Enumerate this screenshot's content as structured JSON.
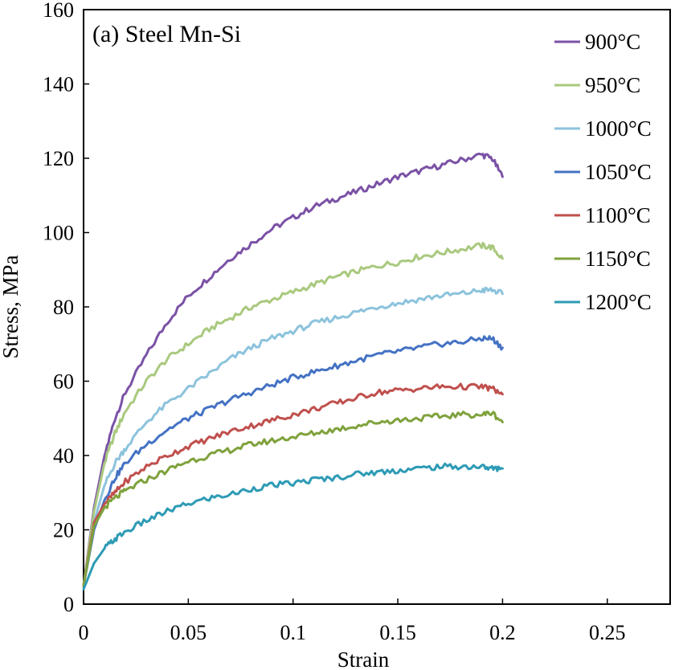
{
  "chart_data": {
    "type": "line",
    "title": "(a) Steel Mn-Si",
    "xlabel": "Strain",
    "ylabel": "Stress, MPa",
    "xlim": [
      0,
      0.28
    ],
    "ylim": [
      0,
      160
    ],
    "xticks": [
      0,
      0.05,
      0.1,
      0.15,
      0.2,
      0.25
    ],
    "xtick_labels": [
      "0",
      "0.05",
      "0.1",
      "0.15",
      "0.2",
      "0.25"
    ],
    "yticks": [
      0,
      20,
      40,
      60,
      80,
      100,
      120,
      140,
      160
    ],
    "ytick_labels": [
      "0",
      "20",
      "40",
      "60",
      "80",
      "100",
      "120",
      "140",
      "160"
    ],
    "grid": false,
    "legend_position": "top-right",
    "series": [
      {
        "name": "900°C",
        "color": "#7B52A6",
        "x": [
          0,
          0.005,
          0.01,
          0.015,
          0.02,
          0.03,
          0.04,
          0.05,
          0.06,
          0.07,
          0.08,
          0.09,
          0.1,
          0.11,
          0.12,
          0.13,
          0.14,
          0.15,
          0.16,
          0.17,
          0.18,
          0.19,
          0.195,
          0.2
        ],
        "y": [
          5,
          26,
          40,
          50,
          57,
          67,
          76,
          83,
          88,
          93,
          97,
          101,
          104,
          107,
          109,
          111,
          113,
          115,
          116.5,
          118,
          119.5,
          121,
          120,
          115
        ]
      },
      {
        "name": "950°C",
        "color": "#A9C97E",
        "x": [
          0,
          0.005,
          0.01,
          0.015,
          0.02,
          0.03,
          0.04,
          0.05,
          0.06,
          0.07,
          0.08,
          0.09,
          0.1,
          0.11,
          0.12,
          0.13,
          0.14,
          0.15,
          0.16,
          0.17,
          0.18,
          0.19,
          0.195,
          0.2
        ],
        "y": [
          5,
          25,
          38,
          46,
          52,
          60,
          66,
          70,
          74,
          77,
          80,
          82,
          84,
          86,
          88,
          89.5,
          91,
          92,
          93.5,
          94.5,
          95.5,
          96.5,
          96,
          93
        ]
      },
      {
        "name": "1000°C",
        "color": "#8CC3DC",
        "x": [
          0,
          0.005,
          0.01,
          0.015,
          0.02,
          0.03,
          0.04,
          0.05,
          0.06,
          0.07,
          0.08,
          0.09,
          0.1,
          0.11,
          0.12,
          0.13,
          0.14,
          0.15,
          0.16,
          0.17,
          0.18,
          0.19,
          0.195,
          0.2
        ],
        "y": [
          5,
          22,
          32,
          38,
          42,
          49,
          54,
          58,
          62,
          66,
          69,
          71.5,
          73.5,
          75.5,
          77,
          78.5,
          80,
          81,
          82,
          83,
          83.5,
          84.5,
          84.5,
          83.5
        ]
      },
      {
        "name": "1050°C",
        "color": "#4472C4",
        "x": [
          0,
          0.005,
          0.01,
          0.015,
          0.02,
          0.03,
          0.04,
          0.05,
          0.06,
          0.07,
          0.08,
          0.09,
          0.1,
          0.11,
          0.12,
          0.13,
          0.14,
          0.15,
          0.16,
          0.17,
          0.18,
          0.19,
          0.195,
          0.2
        ],
        "y": [
          5,
          20,
          28,
          34,
          38,
          43,
          47,
          50,
          52.5,
          55,
          57,
          59,
          61,
          62.5,
          64,
          65.5,
          67,
          68,
          69,
          70,
          70.5,
          71.5,
          71.5,
          69
        ]
      },
      {
        "name": "1100°C",
        "color": "#C0504D",
        "x": [
          0,
          0.005,
          0.01,
          0.015,
          0.02,
          0.03,
          0.04,
          0.05,
          0.06,
          0.07,
          0.08,
          0.09,
          0.1,
          0.11,
          0.12,
          0.13,
          0.14,
          0.15,
          0.16,
          0.17,
          0.18,
          0.19,
          0.195,
          0.2
        ],
        "y": [
          5,
          22,
          27,
          30,
          33,
          37,
          40,
          42.5,
          44.5,
          46.5,
          48,
          49.5,
          51,
          52.5,
          54,
          55.5,
          57,
          57.5,
          58,
          58.5,
          58.5,
          58.5,
          58,
          56.5
        ]
      },
      {
        "name": "1150°C",
        "color": "#7FA23C",
        "x": [
          0,
          0.005,
          0.01,
          0.015,
          0.02,
          0.03,
          0.04,
          0.05,
          0.06,
          0.07,
          0.08,
          0.09,
          0.1,
          0.11,
          0.12,
          0.13,
          0.14,
          0.15,
          0.16,
          0.17,
          0.18,
          0.19,
          0.195,
          0.2
        ],
        "y": [
          5,
          21,
          26,
          28.5,
          30.5,
          33.5,
          36,
          38.5,
          40,
          41.5,
          43,
          44,
          45,
          46,
          47,
          48,
          49,
          49.5,
          50,
          50.5,
          51,
          51,
          51.5,
          49
        ]
      },
      {
        "name": "1200°C",
        "color": "#2E9BB5",
        "x": [
          0,
          0.005,
          0.01,
          0.015,
          0.02,
          0.03,
          0.04,
          0.05,
          0.06,
          0.07,
          0.08,
          0.09,
          0.1,
          0.11,
          0.12,
          0.13,
          0.14,
          0.15,
          0.16,
          0.17,
          0.18,
          0.19,
          0.195,
          0.2
        ],
        "y": [
          4,
          11,
          15,
          17.5,
          19.5,
          22.5,
          25,
          27,
          28.5,
          29.5,
          31,
          32,
          32.5,
          33.5,
          34,
          35,
          35.5,
          36,
          36.5,
          37,
          37,
          37,
          36.5,
          36.5
        ]
      }
    ]
  }
}
